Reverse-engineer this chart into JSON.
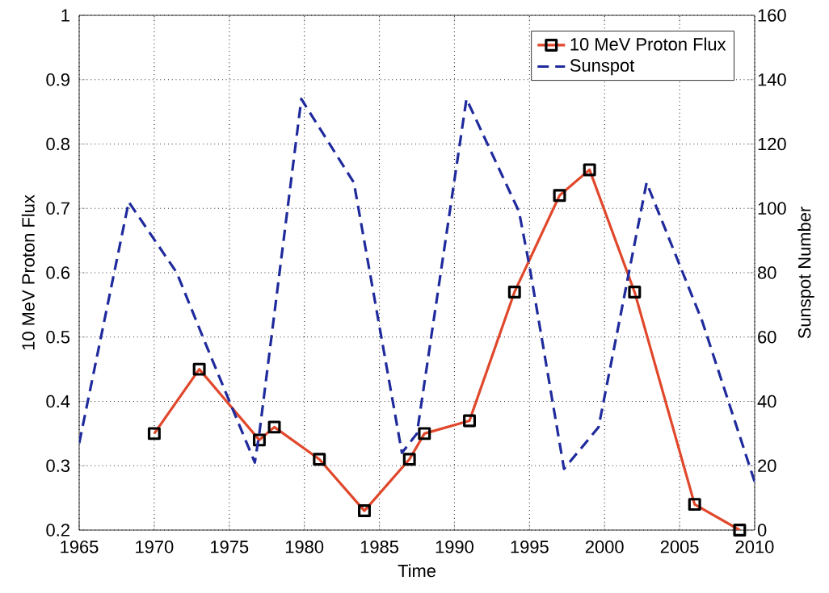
{
  "chart_data": {
    "type": "line",
    "xlabel": "Time",
    "ylabel": "10 MeV Proton Flux",
    "y2label": "Sunspot Number",
    "xlim": [
      1965,
      2010
    ],
    "xticks": [
      1965,
      1970,
      1975,
      1980,
      1985,
      1990,
      1995,
      2000,
      2005,
      2010
    ],
    "ylim": [
      0.2,
      1
    ],
    "yticks": [
      0.2,
      0.3,
      0.4,
      0.5,
      0.6,
      0.7,
      0.8,
      0.9,
      1
    ],
    "y2lim": [
      0,
      160
    ],
    "y2ticks": [
      0,
      20,
      40,
      60,
      80,
      100,
      120,
      140,
      160
    ],
    "grid": true,
    "legend": "top right",
    "series": [
      {
        "name": "10 MeV Proton Flux",
        "color": "#e0472b",
        "marker": "square",
        "line_style": "solid",
        "x": [
          1970,
          1973,
          1977,
          1978,
          1981,
          1984,
          1987,
          1988,
          1991,
          1994,
          1997,
          1999,
          2002,
          2006,
          2009
        ],
        "values": [
          0.35,
          0.45,
          0.34,
          0.36,
          0.31,
          0.23,
          0.31,
          0.35,
          0.37,
          0.57,
          0.72,
          0.76,
          0.57,
          0.24,
          0.2
        ]
      },
      {
        "name": "Sunspot",
        "color": "#1f2a9c",
        "marker": "none",
        "line_style": "dashed",
        "axis": "y2",
        "x": [
          1965,
          1968.3,
          1971.5,
          1973.5,
          1976.7,
          1977,
          1979.8,
          1983.3,
          1986.5,
          1987.5,
          1990.8,
          1994.3,
          1995,
          1997.3,
          1999.6,
          2002.8,
          2006.5,
          2010
        ],
        "values": [
          27,
          102,
          80,
          57,
          21,
          30,
          134,
          108,
          24,
          30,
          134,
          99,
          82,
          19,
          32,
          108,
          65,
          15
        ]
      }
    ]
  }
}
